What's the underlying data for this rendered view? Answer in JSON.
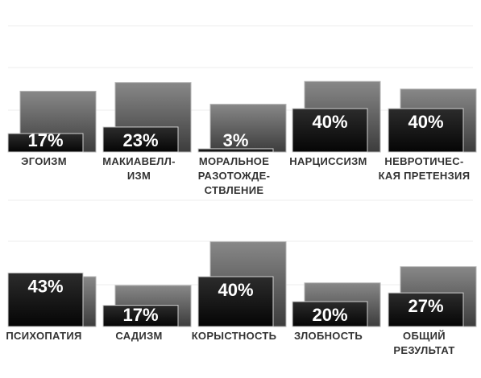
{
  "chart_data": [
    {
      "type": "bar",
      "categories": [
        [
          "ЭГОИЗМ"
        ],
        [
          "МАКИАВЕЛЛ-",
          "ИЗМ"
        ],
        [
          "МОРАЛЬНОЕ",
          "РАЗОТОЖДЕ-",
          "СТВЛЕНИЕ"
        ],
        [
          "НАРЦИССИЗМ"
        ],
        [
          "НЕВРОТИЧЕС-",
          "КАЯ ПРЕТЕНЗИЯ"
        ]
      ],
      "series": [
        {
          "values": [
            56,
            64,
            44,
            65,
            58
          ],
          "color": "#6a6a6a"
        },
        {
          "values": [
            17,
            23,
            3,
            40,
            40
          ],
          "labels": [
            "17%",
            "23%",
            "3%",
            "40%",
            "40%"
          ],
          "color": "#111111"
        }
      ],
      "ylim": [
        0,
        100
      ],
      "grid": true
    },
    {
      "type": "bar",
      "categories": [
        [
          "ПСИХОПАТИЯ"
        ],
        [
          "САДИЗМ"
        ],
        [
          "КОРЫСТНОСТЬ"
        ],
        [
          "ЗЛОБНОСТЬ"
        ],
        [
          "ОБЩИЙ",
          "РЕЗУЛЬТАТ"
        ]
      ],
      "series": [
        {
          "values": [
            40,
            33,
            68,
            35,
            48
          ],
          "color": "#6a6a6a"
        },
        {
          "values": [
            43,
            17,
            40,
            20,
            27
          ],
          "labels": [
            "43%",
            "17%",
            "40%",
            "20%",
            "27%"
          ],
          "color": "#111111"
        }
      ],
      "ylim": [
        0,
        100
      ],
      "grid": true
    }
  ]
}
